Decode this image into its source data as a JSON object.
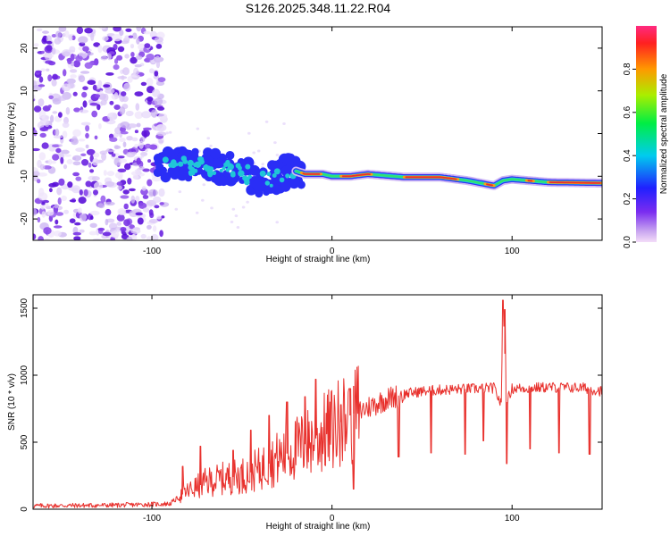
{
  "title": "S126.2025.348.11.22.R04",
  "colors": {
    "snr_line": "#e8302c",
    "ridge_core": "#e8302c",
    "blob_dark": "#5a10d8",
    "blob_light": "#c9b2f2"
  },
  "chart_data": [
    {
      "type": "heatmap",
      "id": "spectrogram",
      "xlabel": "Height of straight line (km)",
      "ylabel": "Frequency (Hz)",
      "xlim": [
        -166,
        150
      ],
      "ylim": [
        -25,
        25
      ],
      "xticks": [
        -100,
        0,
        100
      ],
      "yticks": [
        -20,
        -10,
        0,
        10,
        20
      ],
      "colorbar": {
        "label": "Normalized spectral amplitude",
        "range": [
          0,
          1
        ],
        "ticks": [
          "0.0",
          "0.2",
          "0.4",
          "0.6",
          "0.8"
        ],
        "tick_values": [
          0,
          0.2,
          0.4,
          0.6,
          0.8
        ]
      },
      "noise_region": {
        "x_from": -166,
        "x_to": -95,
        "freq_from": -25,
        "freq_to": 25
      },
      "ridge": {
        "x": [
          -97,
          -90,
          -80,
          -70,
          -60,
          -50,
          -40,
          -30,
          -22,
          -15,
          -5,
          0,
          10,
          20,
          40,
          60,
          75,
          85,
          90,
          95,
          100,
          120,
          150
        ],
        "freq": [
          -7,
          -7,
          -7.5,
          -7.5,
          -8,
          -9,
          -11,
          -10,
          -8.5,
          -9.5,
          -9.5,
          -10,
          -10,
          -9.5,
          -10.2,
          -10.2,
          -11,
          -11.8,
          -12.2,
          -11,
          -10.7,
          -11.4,
          -11.6
        ]
      }
    },
    {
      "type": "line",
      "id": "snr",
      "xlabel": "Height of straight line (km)",
      "ylabel": "SNR (10 * v/v)",
      "xlim": [
        -166,
        150
      ],
      "ylim": [
        0,
        1600
      ],
      "xticks": [
        -100,
        0,
        100
      ],
      "yticks": [
        0,
        500,
        1000,
        1500
      ],
      "series": [
        {
          "name": "SNR",
          "x": [
            -166,
            -120,
            -90,
            -82,
            -70,
            -60,
            -50,
            -40,
            -30,
            -20,
            -10,
            -5,
            0,
            10,
            20,
            30,
            40,
            50,
            60,
            80,
            90,
            94,
            95,
            97,
            100,
            120,
            140,
            150
          ],
          "values": [
            25,
            30,
            40,
            120,
            200,
            230,
            250,
            300,
            380,
            450,
            520,
            560,
            600,
            700,
            760,
            820,
            860,
            880,
            890,
            900,
            905,
            780,
            1520,
            800,
            900,
            910,
            905,
            880
          ],
          "spikes": [
            {
              "x": -83,
              "value": 320
            },
            {
              "x": -73,
              "value": 470
            },
            {
              "x": -55,
              "value": 440
            },
            {
              "x": -45,
              "value": 590
            },
            {
              "x": -35,
              "value": 700
            },
            {
              "x": -25,
              "value": 800
            },
            {
              "x": -15,
              "value": 840
            },
            {
              "x": -9,
              "value": 970
            },
            {
              "x": 5,
              "value": 780
            },
            {
              "x": 10,
              "value": 900
            },
            {
              "x": 12,
              "value": 920
            },
            {
              "x": 95,
              "value": 1560
            },
            {
              "x": 96,
              "value": 1490
            }
          ],
          "dips": [
            {
              "x": 12,
              "value": 150
            },
            {
              "x": 37,
              "value": 390
            },
            {
              "x": 55,
              "value": 420
            },
            {
              "x": 74,
              "value": 410
            },
            {
              "x": 84,
              "value": 510
            },
            {
              "x": 97,
              "value": 340
            },
            {
              "x": 110,
              "value": 450
            },
            {
              "x": 126,
              "value": 420
            },
            {
              "x": 143,
              "value": 410
            }
          ]
        }
      ]
    }
  ]
}
